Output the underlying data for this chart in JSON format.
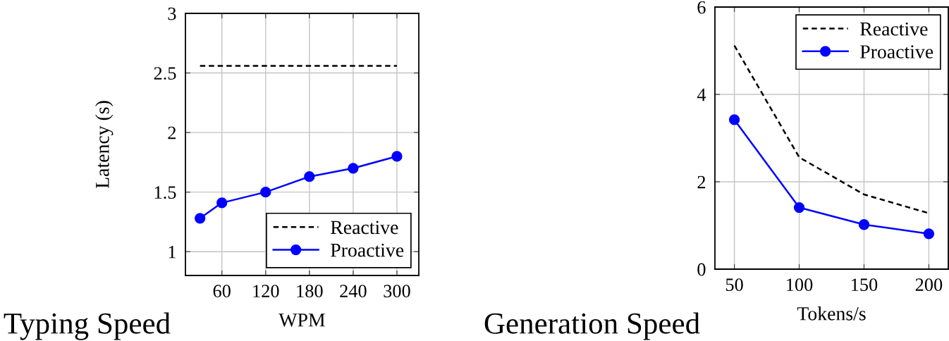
{
  "chart_data": [
    {
      "type": "line",
      "title": "Typing Speed",
      "xlabel": "WPM",
      "ylabel": "Latency (s)",
      "x": [
        30,
        60,
        120,
        180,
        240,
        300
      ],
      "xlim": [
        10,
        330
      ],
      "xticks": [
        60,
        120,
        180,
        240,
        300
      ],
      "ylim": [
        0.8,
        3
      ],
      "yticks": [
        1,
        1.5,
        2,
        2.5,
        3
      ],
      "grid": true,
      "legend": "bottom right",
      "series": [
        {
          "name": "Reactive",
          "color": "#000000",
          "line_style": "dashed",
          "marker": "none",
          "values": [
            2.56,
            2.56,
            2.56,
            2.56,
            2.56,
            2.56
          ]
        },
        {
          "name": "Proactive",
          "color": "#0000ff",
          "line_style": "solid",
          "marker": "circle",
          "values": [
            1.28,
            1.41,
            1.5,
            1.63,
            1.7,
            1.8
          ]
        }
      ]
    },
    {
      "type": "line",
      "title": "Generation Speed",
      "xlabel": "Tokens/s",
      "x": [
        50,
        100,
        150,
        200
      ],
      "xlim": [
        35,
        215
      ],
      "xticks": [
        50,
        100,
        150,
        200
      ],
      "ylim": [
        0,
        6
      ],
      "yticks": [
        0,
        2,
        4,
        6
      ],
      "grid": true,
      "legend": "top right",
      "series": [
        {
          "name": "Reactive",
          "color": "#000000",
          "line_style": "dashed",
          "marker": "none",
          "values": [
            5.12,
            2.56,
            1.71,
            1.28
          ]
        },
        {
          "name": "Proactive",
          "color": "#0000ff",
          "line_style": "solid",
          "marker": "circle",
          "values": [
            3.42,
            1.41,
            1.02,
            0.81
          ]
        }
      ]
    }
  ]
}
